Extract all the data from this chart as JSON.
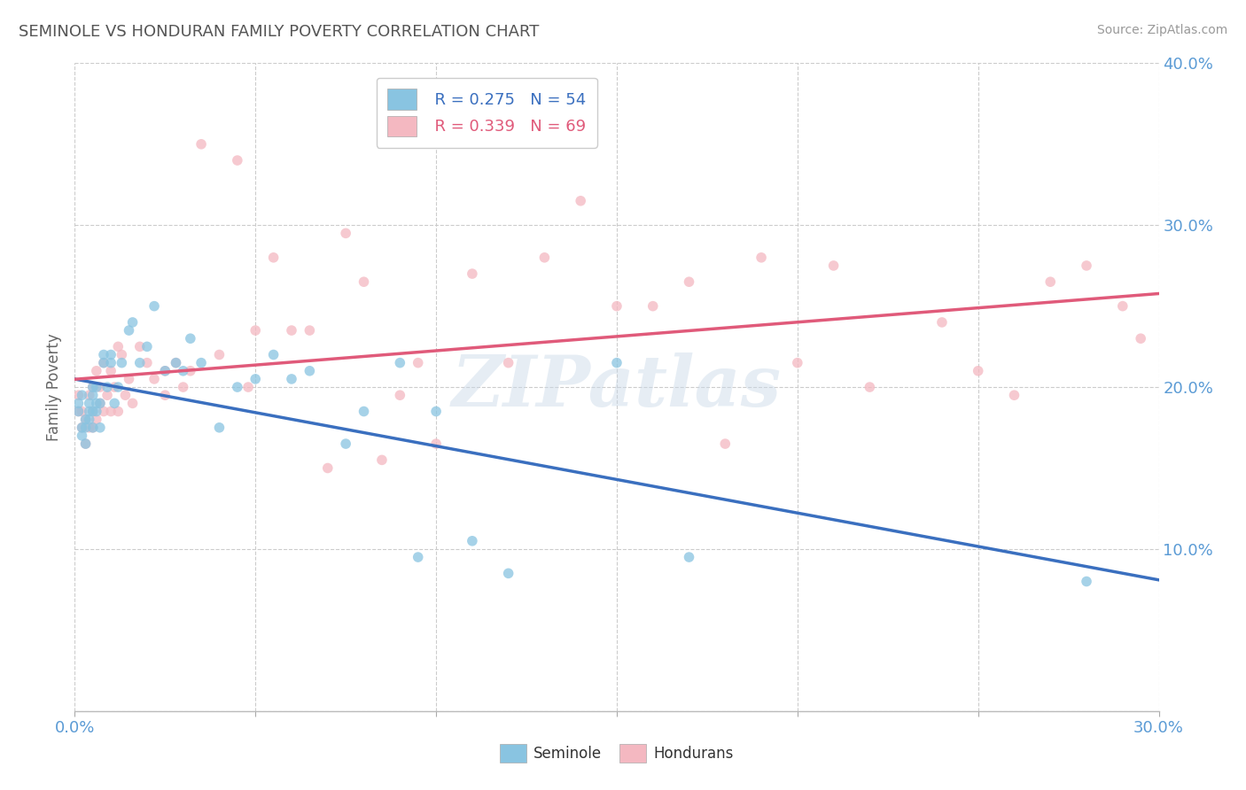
{
  "title": "SEMINOLE VS HONDURAN FAMILY POVERTY CORRELATION CHART",
  "source": "Source: ZipAtlas.com",
  "ylabel": "Family Poverty",
  "xlim": [
    0.0,
    0.3
  ],
  "ylim": [
    0.0,
    0.4
  ],
  "xtick_positions": [
    0.0,
    0.05,
    0.1,
    0.15,
    0.2,
    0.25,
    0.3
  ],
  "xtick_labels": [
    "0.0%",
    "",
    "",
    "",
    "",
    "",
    "30.0%"
  ],
  "ytick_positions": [
    0.0,
    0.1,
    0.2,
    0.3,
    0.4
  ],
  "ytick_labels": [
    "",
    "10.0%",
    "20.0%",
    "30.0%",
    "40.0%"
  ],
  "seminole_color": "#89c4e1",
  "honduran_color": "#f4b8c1",
  "seminole_line_color": "#3a6fbf",
  "honduran_line_color": "#e05a7a",
  "seminole_R": 0.275,
  "seminole_N": 54,
  "honduran_R": 0.339,
  "honduran_N": 69,
  "background_color": "#ffffff",
  "grid_color": "#cccccc",
  "tick_color": "#5b9bd5",
  "watermark": "ZIPatlas",
  "seminole_x": [
    0.001,
    0.001,
    0.002,
    0.002,
    0.002,
    0.003,
    0.003,
    0.003,
    0.004,
    0.004,
    0.004,
    0.005,
    0.005,
    0.005,
    0.005,
    0.006,
    0.006,
    0.006,
    0.007,
    0.007,
    0.008,
    0.008,
    0.009,
    0.01,
    0.01,
    0.011,
    0.012,
    0.013,
    0.015,
    0.016,
    0.018,
    0.02,
    0.022,
    0.025,
    0.028,
    0.03,
    0.032,
    0.035,
    0.04,
    0.045,
    0.05,
    0.055,
    0.06,
    0.065,
    0.075,
    0.08,
    0.09,
    0.095,
    0.1,
    0.11,
    0.12,
    0.15,
    0.17,
    0.28
  ],
  "seminole_y": [
    0.19,
    0.185,
    0.175,
    0.17,
    0.195,
    0.165,
    0.175,
    0.18,
    0.19,
    0.185,
    0.18,
    0.175,
    0.195,
    0.185,
    0.2,
    0.185,
    0.19,
    0.2,
    0.175,
    0.19,
    0.22,
    0.215,
    0.2,
    0.215,
    0.22,
    0.19,
    0.2,
    0.215,
    0.235,
    0.24,
    0.215,
    0.225,
    0.25,
    0.21,
    0.215,
    0.21,
    0.23,
    0.215,
    0.175,
    0.2,
    0.205,
    0.22,
    0.205,
    0.21,
    0.165,
    0.185,
    0.215,
    0.095,
    0.185,
    0.105,
    0.085,
    0.215,
    0.095,
    0.08
  ],
  "honduran_x": [
    0.001,
    0.001,
    0.002,
    0.002,
    0.003,
    0.003,
    0.004,
    0.004,
    0.005,
    0.005,
    0.005,
    0.006,
    0.006,
    0.007,
    0.007,
    0.008,
    0.008,
    0.009,
    0.01,
    0.01,
    0.011,
    0.012,
    0.012,
    0.013,
    0.014,
    0.015,
    0.016,
    0.018,
    0.02,
    0.022,
    0.025,
    0.025,
    0.028,
    0.03,
    0.032,
    0.035,
    0.04,
    0.045,
    0.048,
    0.05,
    0.055,
    0.06,
    0.065,
    0.07,
    0.075,
    0.08,
    0.085,
    0.09,
    0.095,
    0.1,
    0.11,
    0.12,
    0.13,
    0.14,
    0.15,
    0.16,
    0.17,
    0.18,
    0.19,
    0.2,
    0.21,
    0.22,
    0.24,
    0.25,
    0.26,
    0.27,
    0.28,
    0.29,
    0.295
  ],
  "honduran_y": [
    0.185,
    0.195,
    0.175,
    0.185,
    0.165,
    0.18,
    0.175,
    0.195,
    0.185,
    0.175,
    0.2,
    0.18,
    0.21,
    0.19,
    0.2,
    0.185,
    0.215,
    0.195,
    0.185,
    0.21,
    0.2,
    0.185,
    0.225,
    0.22,
    0.195,
    0.205,
    0.19,
    0.225,
    0.215,
    0.205,
    0.195,
    0.21,
    0.215,
    0.2,
    0.21,
    0.35,
    0.22,
    0.34,
    0.2,
    0.235,
    0.28,
    0.235,
    0.235,
    0.15,
    0.295,
    0.265,
    0.155,
    0.195,
    0.215,
    0.165,
    0.27,
    0.215,
    0.28,
    0.315,
    0.25,
    0.25,
    0.265,
    0.165,
    0.28,
    0.215,
    0.275,
    0.2,
    0.24,
    0.21,
    0.195,
    0.265,
    0.275,
    0.25,
    0.23
  ]
}
